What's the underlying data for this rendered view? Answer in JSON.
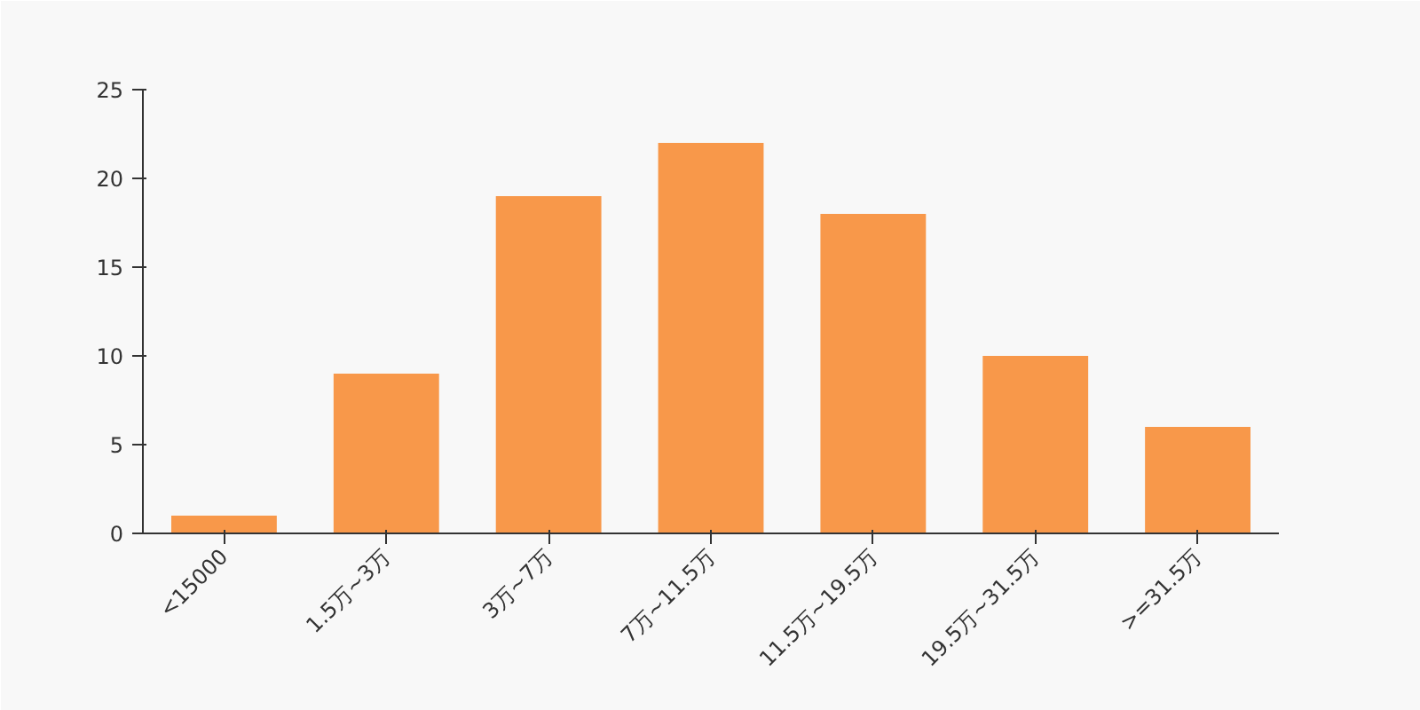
{
  "chart_data": {
    "type": "bar",
    "categories": [
      "<15000",
      "1.5万~3万",
      "3万~7万",
      "7万~11.5万",
      "11.5万~19.5万",
      "19.5万~31.5万",
      ">=31.5万"
    ],
    "values": [
      1,
      9,
      19,
      22,
      18,
      10,
      6
    ],
    "color": "#f8984a",
    "ylim": [
      0,
      25
    ],
    "yticks": [
      0,
      5,
      10,
      15,
      20,
      25
    ],
    "grid": false
  }
}
